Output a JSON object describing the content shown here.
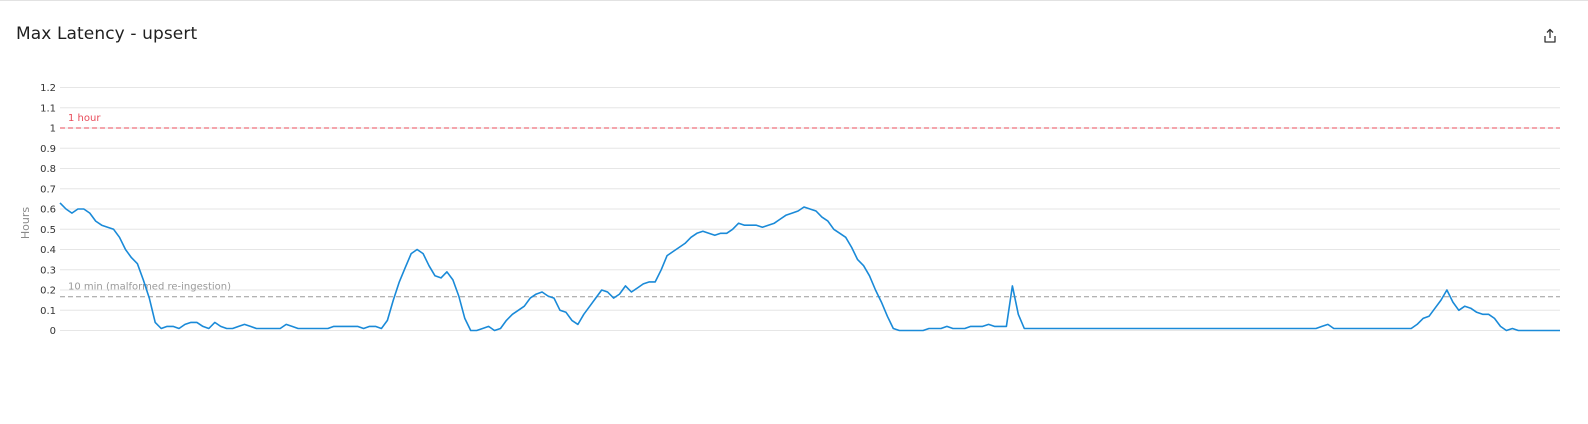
{
  "panel": {
    "title": "Max Latency - upsert",
    "export_icon": "share-export-icon"
  },
  "chart_data": {
    "type": "line",
    "title": "Max Latency - upsert",
    "xlabel": "",
    "ylabel": "Hours",
    "ylim": [
      0,
      1.2
    ],
    "yticks": [
      0,
      0.1,
      0.2,
      0.3,
      0.4,
      0.5,
      0.6,
      0.7,
      0.8,
      0.9,
      1,
      1.1,
      1.2
    ],
    "ytick_labels": [
      "0",
      "0.1",
      "0.2",
      "0.3",
      "0.4",
      "0.5",
      "0.6",
      "0.7",
      "0.8",
      "0.9",
      "1",
      "1.1",
      "1.2"
    ],
    "grid": true,
    "series": [
      {
        "color": "#1a8ad8",
        "values": [
          0.63,
          0.6,
          0.58,
          0.6,
          0.6,
          0.58,
          0.54,
          0.52,
          0.51,
          0.5,
          0.46,
          0.4,
          0.36,
          0.33,
          0.25,
          0.16,
          0.04,
          0.01,
          0.02,
          0.02,
          0.01,
          0.03,
          0.04,
          0.04,
          0.02,
          0.01,
          0.04,
          0.02,
          0.01,
          0.01,
          0.02,
          0.03,
          0.02,
          0.01,
          0.01,
          0.01,
          0.01,
          0.01,
          0.03,
          0.02,
          0.01,
          0.01,
          0.01,
          0.01,
          0.01,
          0.01,
          0.02,
          0.02,
          0.02,
          0.02,
          0.02,
          0.01,
          0.02,
          0.02,
          0.01,
          0.05,
          0.15,
          0.24,
          0.31,
          0.38,
          0.4,
          0.38,
          0.32,
          0.27,
          0.26,
          0.29,
          0.25,
          0.17,
          0.06,
          0.0,
          0.0,
          0.01,
          0.02,
          0.0,
          0.01,
          0.05,
          0.08,
          0.1,
          0.12,
          0.16,
          0.18,
          0.19,
          0.17,
          0.16,
          0.1,
          0.09,
          0.05,
          0.03,
          0.08,
          0.12,
          0.16,
          0.2,
          0.19,
          0.16,
          0.18,
          0.22,
          0.19,
          0.21,
          0.23,
          0.24,
          0.24,
          0.3,
          0.37,
          0.39,
          0.41,
          0.43,
          0.46,
          0.48,
          0.49,
          0.48,
          0.47,
          0.48,
          0.48,
          0.5,
          0.53,
          0.52,
          0.52,
          0.52,
          0.51,
          0.52,
          0.53,
          0.55,
          0.57,
          0.58,
          0.59,
          0.61,
          0.6,
          0.59,
          0.56,
          0.54,
          0.5,
          0.48,
          0.46,
          0.41,
          0.35,
          0.32,
          0.27,
          0.2,
          0.14,
          0.07,
          0.01,
          0.0,
          0.0,
          0.0,
          0.0,
          0.0,
          0.01,
          0.01,
          0.01,
          0.02,
          0.01,
          0.01,
          0.01,
          0.02,
          0.02,
          0.02,
          0.03,
          0.02,
          0.02,
          0.02,
          0.22,
          0.08,
          0.01,
          0.01,
          0.01,
          0.01,
          0.01,
          0.01,
          0.01,
          0.01,
          0.01,
          0.01,
          0.01,
          0.01,
          0.01,
          0.01,
          0.01,
          0.01,
          0.01,
          0.01,
          0.01,
          0.01,
          0.01,
          0.01,
          0.01,
          0.01,
          0.01,
          0.01,
          0.01,
          0.01,
          0.01,
          0.01,
          0.01,
          0.01,
          0.01,
          0.01,
          0.01,
          0.01,
          0.01,
          0.01,
          0.01,
          0.01,
          0.01,
          0.01,
          0.01,
          0.01,
          0.01,
          0.01,
          0.01,
          0.01,
          0.01,
          0.01,
          0.02,
          0.03,
          0.01,
          0.01,
          0.01,
          0.01,
          0.01,
          0.01,
          0.01,
          0.01,
          0.01,
          0.01,
          0.01,
          0.01,
          0.01,
          0.01,
          0.03,
          0.06,
          0.07,
          0.11,
          0.15,
          0.2,
          0.14,
          0.1,
          0.12,
          0.11,
          0.09,
          0.08,
          0.08,
          0.06,
          0.02,
          0.0,
          0.01,
          0.0,
          0.0,
          0.0,
          0.0,
          0.0,
          0.0,
          0.0,
          0.0
        ]
      }
    ],
    "annotations": [
      {
        "label": "1 hour",
        "value": 1.0,
        "color": "#e84b5a"
      },
      {
        "label": "10 min (malformed re-ingestion)",
        "value": 0.1667,
        "color": "#9a9a9a"
      }
    ]
  }
}
